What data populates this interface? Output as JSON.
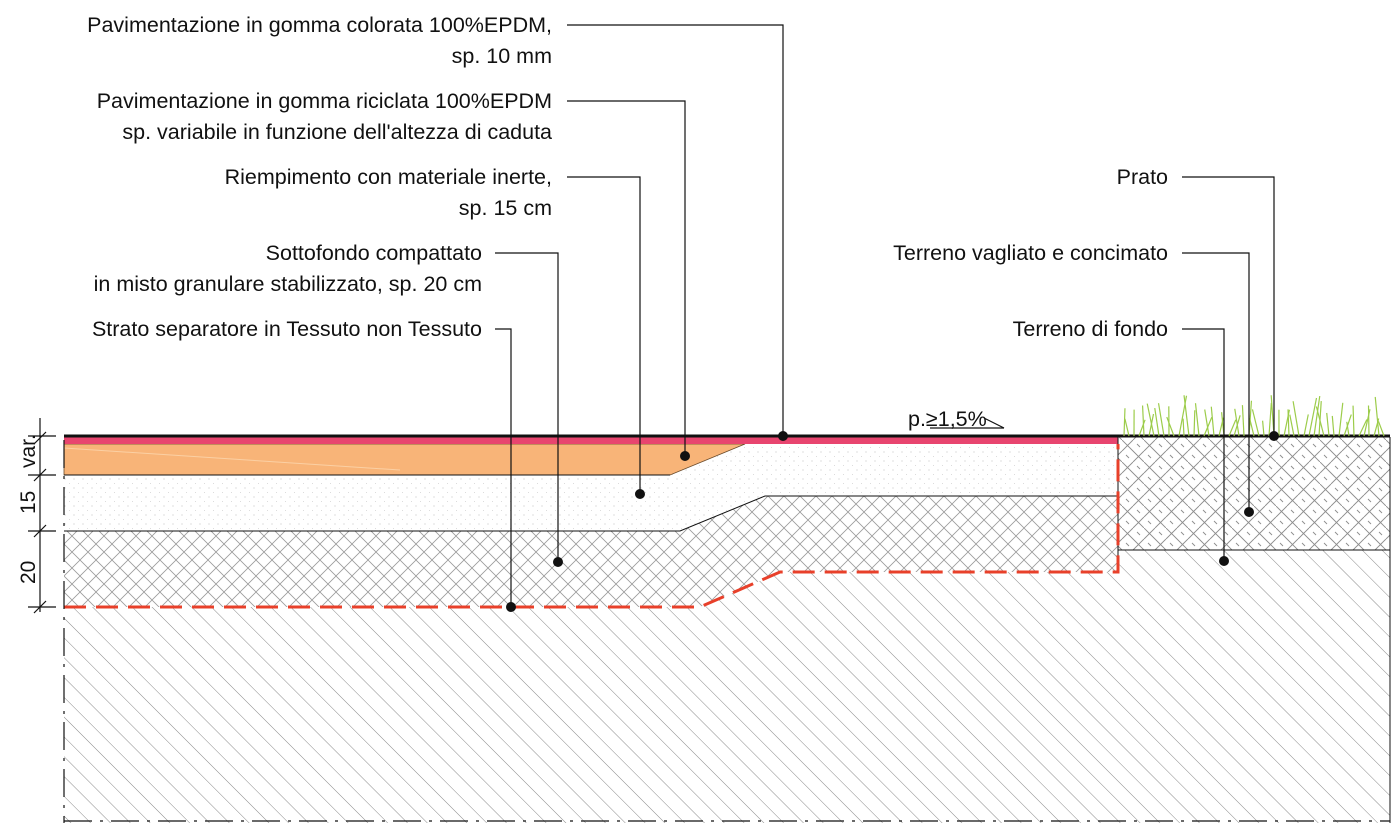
{
  "labels_left": [
    {
      "id": "epdm-colored",
      "lines": [
        "Pavimentazione in gomma colorata 100%EPDM,",
        "sp. 10 mm"
      ]
    },
    {
      "id": "epdm-recycled",
      "lines": [
        "Pavimentazione in gomma riciclata 100%EPDM",
        "sp. variabile in funzione dell'altezza di caduta"
      ]
    },
    {
      "id": "inert-fill",
      "lines": [
        "Riempimento con materiale inerte,",
        "sp. 15 cm"
      ]
    },
    {
      "id": "subbase",
      "lines": [
        "Sottofondo compattato",
        "in misto granulare stabilizzato, sp. 20 cm"
      ]
    },
    {
      "id": "separator",
      "lines": [
        "Strato separatore in Tessuto non Tessuto"
      ]
    }
  ],
  "labels_right": [
    {
      "id": "lawn",
      "lines": [
        "Prato"
      ]
    },
    {
      "id": "topsoil",
      "lines": [
        "Terreno vagliato e concimato"
      ]
    },
    {
      "id": "subsoil",
      "lines": [
        "Terreno di fondo"
      ]
    }
  ],
  "slope_label": "p.≥1,5%",
  "dimensions": [
    "var.",
    "15",
    "20"
  ],
  "colors": {
    "epdm_colored": "#e8456f",
    "epdm_recycled": "#f8b478",
    "separator": "#e8402a",
    "grass": "#9ccc4a",
    "line": "#111111"
  }
}
